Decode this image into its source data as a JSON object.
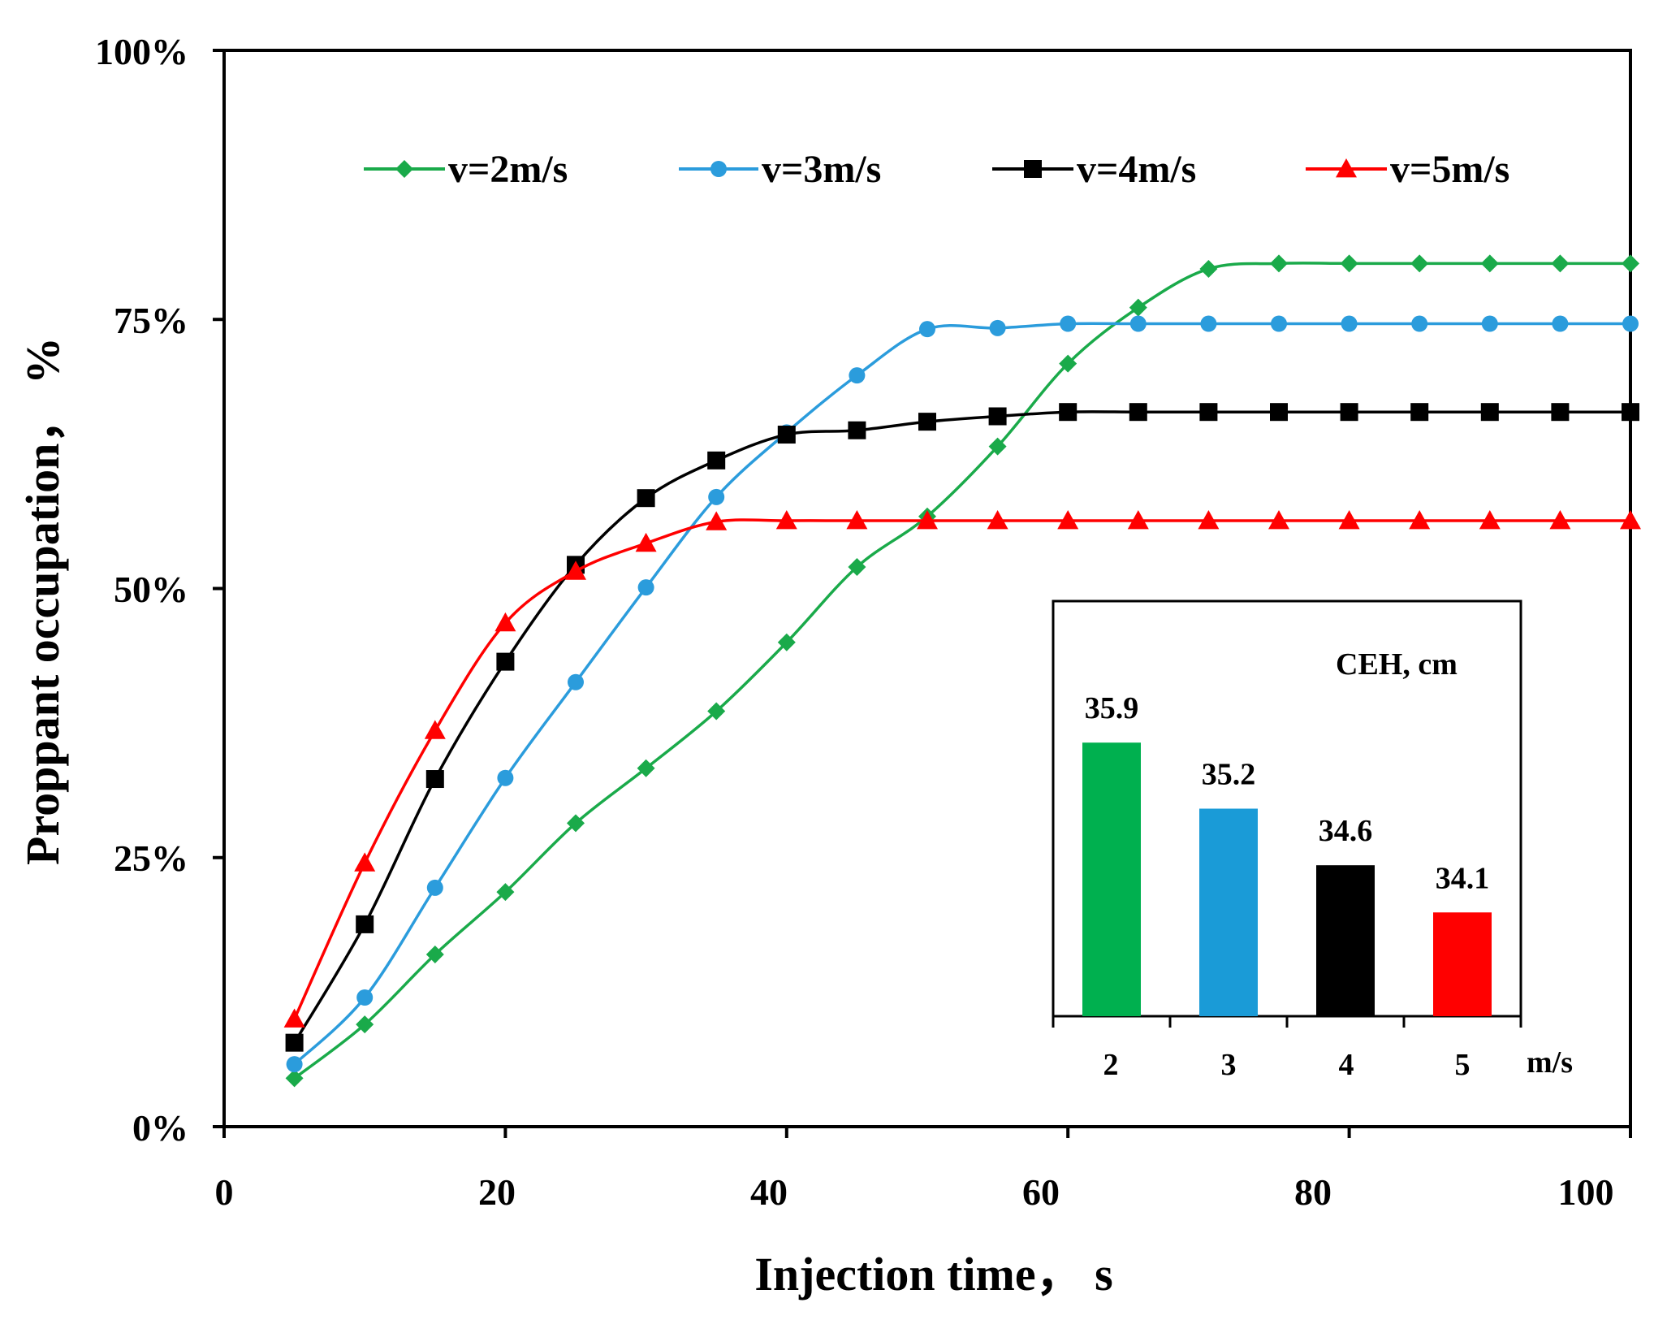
{
  "chart_data": [
    {
      "type": "line",
      "xlabel": "Injection time， s",
      "ylabel": "Proppant occupation， %",
      "xlim": [
        0,
        100
      ],
      "ylim": [
        0,
        100
      ],
      "x_ticks": [
        "0",
        "20",
        "40",
        "60",
        "80",
        "100"
      ],
      "y_ticks": [
        "0%",
        "25%",
        "50%",
        "75%",
        "100%"
      ],
      "legend_position": "top",
      "x": [
        5,
        10,
        15,
        20,
        25,
        30,
        35,
        40,
        45,
        50,
        55,
        60,
        65,
        70,
        75,
        80,
        85,
        90,
        95,
        100
      ],
      "series": [
        {
          "name": "v=2m/s",
          "color": "#1aaa4a",
          "marker": "diamond",
          "values": [
            4.5,
            9.5,
            16,
            21.8,
            28.2,
            33.3,
            38.6,
            45,
            52,
            56.7,
            63.2,
            70.9,
            76.1,
            79.7,
            80.2,
            80.2,
            80.2,
            80.2,
            80.2,
            80.2
          ]
        },
        {
          "name": "v=3m/s",
          "color": "#2b9cdc",
          "marker": "circle",
          "values": [
            5.8,
            12,
            22.2,
            32.4,
            41.3,
            50.1,
            58.5,
            64.5,
            69.8,
            74.1,
            74.2,
            74.6,
            74.6,
            74.6,
            74.6,
            74.6,
            74.6,
            74.6,
            74.6,
            74.6
          ]
        },
        {
          "name": "v=4m/s",
          "color": "#000000",
          "marker": "square",
          "values": [
            7.8,
            18.8,
            32.3,
            43.2,
            52.2,
            58.4,
            61.9,
            64.3,
            64.7,
            65.5,
            66,
            66.4,
            66.4,
            66.4,
            66.4,
            66.4,
            66.4,
            66.4,
            66.4,
            66.4
          ]
        },
        {
          "name": "v=5m/s",
          "color": "#ff0000",
          "marker": "triangle",
          "values": [
            10,
            24.5,
            36.8,
            46.8,
            51.6,
            54.2,
            56.2,
            56.3,
            56.3,
            56.3,
            56.3,
            56.3,
            56.3,
            56.3,
            56.3,
            56.3,
            56.3,
            56.3,
            56.3,
            56.3
          ]
        }
      ]
    },
    {
      "type": "bar",
      "title": "CEH, cm",
      "categories": [
        "2",
        "3",
        "4",
        "5"
      ],
      "x_unit": "m/s",
      "values": [
        35.9,
        35.2,
        34.6,
        34.1
      ],
      "value_labels": [
        "35.9",
        "35.2",
        "34.6",
        "34.1"
      ],
      "colors": [
        "#00b04f",
        "#1a9bd7",
        "#000000",
        "#ff0000"
      ],
      "ylim": [
        33.0,
        37.4
      ]
    }
  ]
}
